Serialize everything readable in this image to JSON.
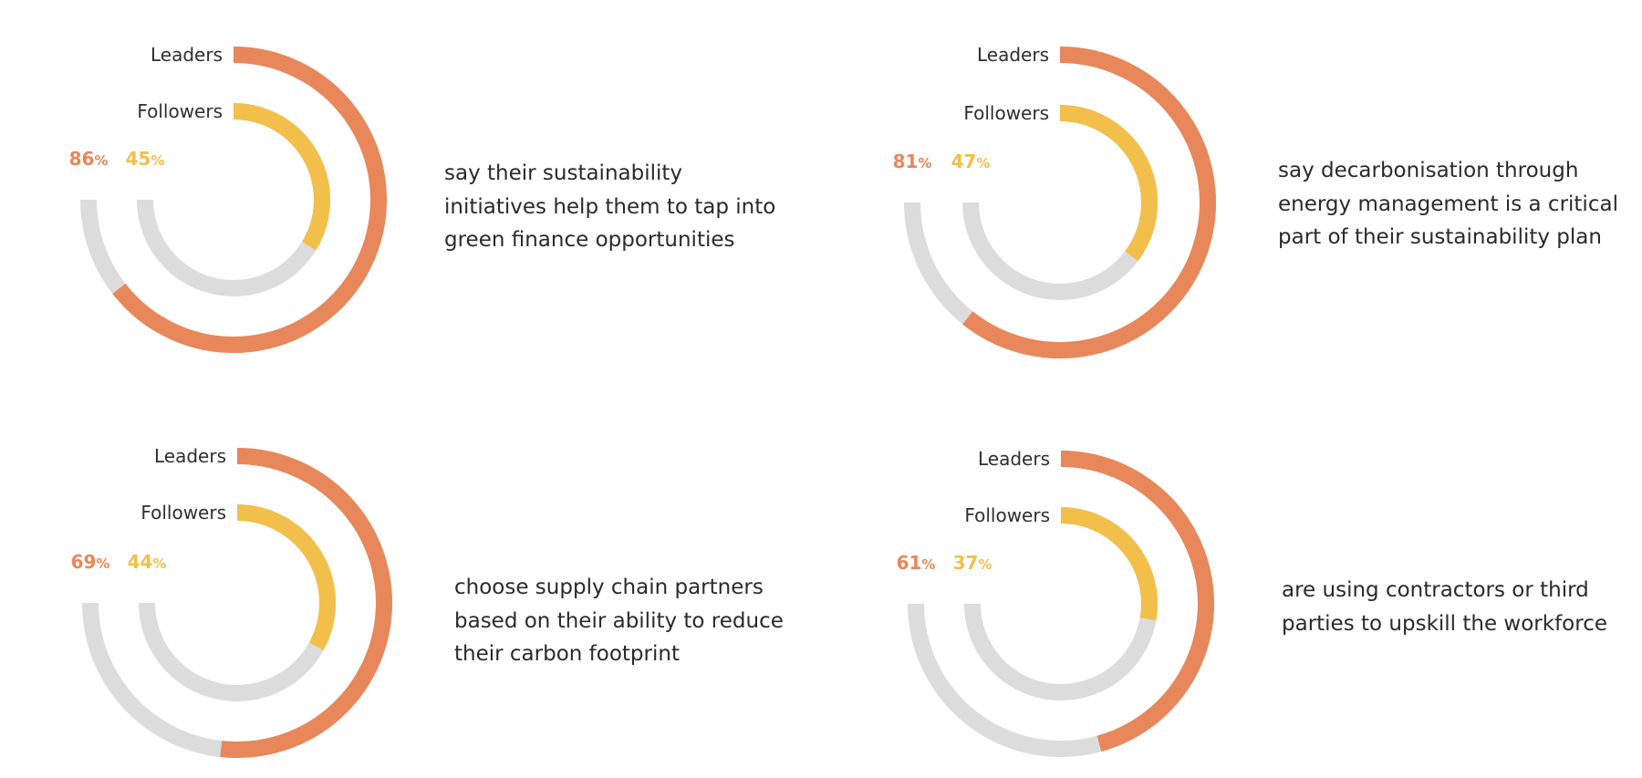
{
  "colors": {
    "leaders": "#e8875a",
    "followers": "#f2bf4a",
    "track": "#dcdcdc",
    "text": "#2a2a2a"
  },
  "chart_data": [
    {
      "type": "radial-bar",
      "series": [
        {
          "name": "Leaders",
          "value": 86,
          "unit": "%"
        },
        {
          "name": "Followers",
          "value": 45,
          "unit": "%"
        }
      ],
      "description": "say their sustainability\ninitiatives help them to tap into\ngreen finance opportunities"
    },
    {
      "type": "radial-bar",
      "series": [
        {
          "name": "Leaders",
          "value": 81,
          "unit": "%"
        },
        {
          "name": "Followers",
          "value": 47,
          "unit": "%"
        }
      ],
      "description": "say decarbonisation through\nenergy management is a critical\npart of their sustainability plan"
    },
    {
      "type": "radial-bar",
      "series": [
        {
          "name": "Leaders",
          "value": 69,
          "unit": "%"
        },
        {
          "name": "Followers",
          "value": 44,
          "unit": "%"
        }
      ],
      "description": "choose supply chain partners\nbased on their ability to reduce\ntheir carbon footprint"
    },
    {
      "type": "radial-bar",
      "series": [
        {
          "name": "Leaders",
          "value": 61,
          "unit": "%"
        },
        {
          "name": "Followers",
          "value": 37,
          "unit": "%"
        }
      ],
      "description": "are using contractors or third\nparties to upskill the workforce"
    }
  ]
}
